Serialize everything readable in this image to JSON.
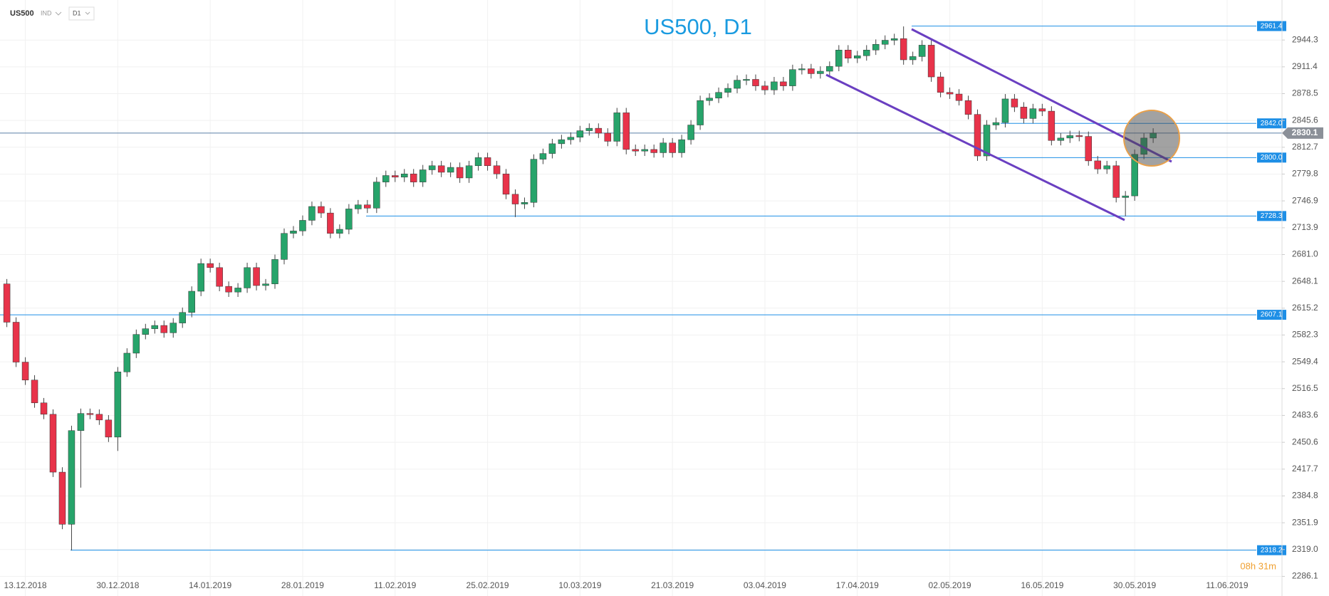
{
  "header": {
    "symbol": "US500",
    "market": "IND",
    "timeframe": "D1"
  },
  "chart_data": {
    "type": "candlestick",
    "title": "US500, D1",
    "categories": [
      null,
      null,
      "13.12.2018",
      null,
      null,
      null,
      null,
      null,
      null,
      null,
      null,
      null,
      "30.12.2018",
      null,
      null,
      null,
      null,
      null,
      null,
      null,
      null,
      null,
      "14.01.2019",
      null,
      null,
      null,
      null,
      null,
      null,
      null,
      null,
      null,
      "28.01.2019",
      null,
      null,
      null,
      null,
      null,
      null,
      null,
      null,
      null,
      "11.02.2019",
      null,
      null,
      null,
      null,
      null,
      null,
      null,
      null,
      null,
      "25.02.2019",
      null,
      null,
      null,
      null,
      null,
      null,
      null,
      null,
      null,
      "10.03.2019",
      null,
      null,
      null,
      null,
      null,
      null,
      null,
      null,
      null,
      "21.03.2019",
      null,
      null,
      null,
      null,
      null,
      null,
      null,
      null,
      null,
      "03.04.2019",
      null,
      null,
      null,
      null,
      null,
      null,
      null,
      null,
      null,
      "17.04.2019",
      null,
      null,
      null,
      null,
      null,
      null,
      null,
      null,
      null,
      "02.05.2019",
      null,
      null,
      null,
      null,
      null,
      null,
      null,
      null,
      null,
      "16.05.2019",
      null,
      null,
      null,
      null,
      null,
      null,
      null,
      null,
      null,
      "30.05.2019",
      null,
      null,
      null,
      null,
      null,
      null,
      null,
      null,
      null,
      "11.06.2019",
      null,
      null
    ],
    "open": [
      2645,
      2598,
      2549,
      2527,
      2499,
      2485,
      2414,
      2350,
      2465,
      2486,
      2485,
      2478,
      2457,
      2537,
      2560,
      2583,
      2590,
      2594,
      2585,
      2597,
      2610,
      2636,
      2670,
      2665,
      2642,
      2635,
      2640,
      2665,
      2643,
      2645,
      2675,
      2707,
      2710,
      2723,
      2740,
      2732,
      2707,
      2712,
      2737,
      2742,
      2738,
      2770,
      2778,
      2776,
      2780,
      2770,
      2785,
      2790,
      2782,
      2788,
      2775,
      2790,
      2800,
      2790,
      2780,
      2755,
      2743,
      2745,
      2798,
      2805,
      2817,
      2822,
      2825,
      2833,
      2836,
      2830,
      2820,
      2855,
      2810,
      2808,
      2810,
      2806,
      2818,
      2806,
      2822,
      2840,
      2870,
      2873,
      2880,
      2885,
      2895,
      2896,
      2888,
      2883,
      2893,
      2888,
      2908,
      2909,
      2903,
      2906,
      2912,
      2932,
      2922,
      2925,
      2932,
      2939,
      2944,
      2946,
      2920,
      2924,
      2938,
      2899,
      2880,
      2878,
      2870,
      2853,
      2802,
      2840,
      2843,
      2872,
      2862,
      2848,
      2860,
      2857,
      2821,
      2824,
      2827,
      2826,
      2796,
      2786,
      2790,
      2751,
      2753,
      2804,
      2824,
      null,
      null,
      null,
      null,
      null,
      null,
      null,
      null,
      null,
      null
    ],
    "high": [
      2651,
      2604,
      2555,
      2533,
      2505,
      2491,
      2420,
      2471,
      2492,
      2492,
      2491,
      2484,
      2543,
      2566,
      2589,
      2596,
      2600,
      2600,
      2603,
      2616,
      2642,
      2676,
      2676,
      2671,
      2648,
      2646,
      2671,
      2671,
      2651,
      2681,
      2713,
      2716,
      2729,
      2746,
      2746,
      2738,
      2718,
      2743,
      2748,
      2748,
      2776,
      2784,
      2784,
      2786,
      2786,
      2791,
      2796,
      2796,
      2794,
      2794,
      2796,
      2806,
      2806,
      2796,
      2786,
      2761,
      2751,
      2804,
      2811,
      2823,
      2828,
      2831,
      2839,
      2842,
      2842,
      2836,
      2861,
      2861,
      2816,
      2816,
      2816,
      2824,
      2824,
      2828,
      2846,
      2876,
      2879,
      2886,
      2891,
      2901,
      2902,
      2902,
      2894,
      2899,
      2899,
      2914,
      2915,
      2915,
      2912,
      2918,
      2938,
      2938,
      2931,
      2938,
      2945,
      2950,
      2952,
      2961,
      2930,
      2944,
      2944,
      2905,
      2886,
      2884,
      2876,
      2859,
      2846,
      2849,
      2878,
      2878,
      2868,
      2866,
      2866,
      2863,
      2830,
      2833,
      2833,
      2832,
      2802,
      2796,
      2796,
      2759,
      2810,
      2830,
      2836,
      null,
      null,
      null,
      null,
      null,
      null,
      null,
      null,
      null,
      null
    ],
    "low": [
      2592,
      2543,
      2521,
      2493,
      2479,
      2408,
      2344,
      2318,
      2395,
      2479,
      2472,
      2451,
      2440,
      2531,
      2554,
      2577,
      2584,
      2579,
      2579,
      2591,
      2604,
      2630,
      2659,
      2636,
      2629,
      2629,
      2634,
      2637,
      2637,
      2639,
      2669,
      2701,
      2704,
      2717,
      2726,
      2701,
      2701,
      2706,
      2731,
      2732,
      2732,
      2764,
      2770,
      2770,
      2764,
      2764,
      2779,
      2776,
      2776,
      2769,
      2769,
      2784,
      2784,
      2774,
      2749,
      2727,
      2737,
      2739,
      2792,
      2799,
      2811,
      2816,
      2819,
      2827,
      2824,
      2814,
      2814,
      2804,
      2802,
      2802,
      2800,
      2800,
      2800,
      2800,
      2816,
      2834,
      2864,
      2867,
      2874,
      2879,
      2889,
      2882,
      2877,
      2877,
      2882,
      2882,
      2902,
      2897,
      2897,
      2900,
      2906,
      2916,
      2916,
      2919,
      2926,
      2933,
      2938,
      2914,
      2914,
      2918,
      2893,
      2874,
      2872,
      2864,
      2847,
      2796,
      2796,
      2834,
      2837,
      2856,
      2842,
      2842,
      2851,
      2815,
      2815,
      2818,
      2820,
      2790,
      2780,
      2780,
      2745,
      2728,
      2747,
      2798,
      2818,
      null,
      null,
      null,
      null,
      null,
      null,
      null,
      null,
      null,
      null
    ],
    "close": [
      2598,
      2549,
      2527,
      2499,
      2485,
      2414,
      2350,
      2465,
      2486,
      2485,
      2478,
      2457,
      2537,
      2560,
      2583,
      2590,
      2594,
      2585,
      2597,
      2610,
      2636,
      2670,
      2665,
      2642,
      2635,
      2640,
      2665,
      2643,
      2645,
      2675,
      2707,
      2710,
      2723,
      2740,
      2732,
      2707,
      2712,
      2737,
      2742,
      2738,
      2770,
      2778,
      2776,
      2780,
      2770,
      2785,
      2790,
      2782,
      2788,
      2775,
      2790,
      2800,
      2790,
      2780,
      2755,
      2743,
      2745,
      2798,
      2805,
      2817,
      2822,
      2825,
      2833,
      2836,
      2830,
      2820,
      2855,
      2810,
      2808,
      2810,
      2806,
      2818,
      2806,
      2822,
      2840,
      2870,
      2873,
      2880,
      2885,
      2895,
      2896,
      2888,
      2883,
      2893,
      2888,
      2908,
      2909,
      2903,
      2906,
      2912,
      2932,
      2922,
      2925,
      2932,
      2939,
      2944,
      2946,
      2920,
      2924,
      2938,
      2899,
      2880,
      2878,
      2870,
      2853,
      2802,
      2840,
      2843,
      2872,
      2862,
      2848,
      2860,
      2857,
      2821,
      2824,
      2827,
      2826,
      2796,
      2786,
      2790,
      2751,
      2753,
      2804,
      2824,
      2830,
      null,
      null,
      null,
      null,
      null,
      null,
      null,
      null,
      null,
      null
    ],
    "up_color": "#27a46b",
    "down_color": "#e8334a",
    "ylim": [
      2262.0,
      2993.4
    ],
    "yticks": [
      2944.3,
      2911.4,
      2878.5,
      2845.6,
      2812.7,
      2779.8,
      2746.9,
      2713.9,
      {
        "value": 2681,
        "label": "2681.0"
      },
      2648.1,
      2615.2,
      2582.3,
      2549.4,
      2516.5,
      2483.6,
      2450.6,
      2417.7,
      2384.8,
      2351.9,
      {
        "value": 2319,
        "label": "2319.0"
      },
      2286.1
    ],
    "grid": true,
    "levels": [
      2961.4,
      {
        "value": 2842,
        "label": "2842.0"
      },
      {
        "value": 2800,
        "label": "2800.0"
      },
      2728.3,
      2607.1,
      2318.2
    ],
    "level_color": "#1e8fe6",
    "current_price": 2830.1,
    "countdown": "08h 31m"
  }
}
